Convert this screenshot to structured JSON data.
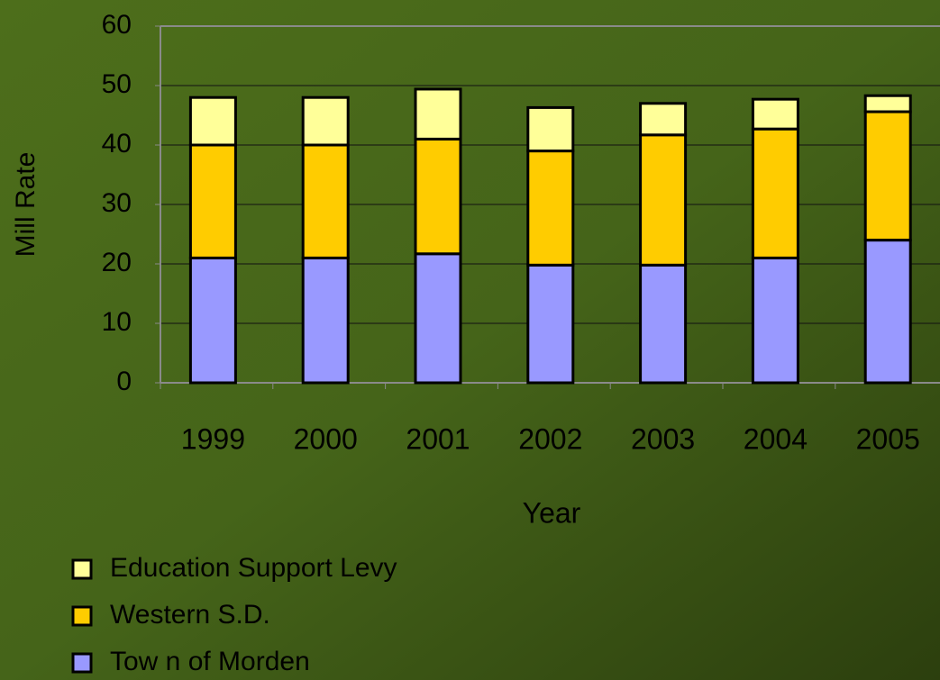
{
  "chart_data": {
    "type": "stacked_bar",
    "xlabel": "Year",
    "ylabel": "Mill Rate",
    "categories": [
      "1999",
      "2000",
      "2001",
      "2002",
      "2003",
      "2004",
      "2005"
    ],
    "series": [
      {
        "name": "Tow n of Morden",
        "color": "#9999ff",
        "values": [
          21,
          21,
          21.7,
          19.8,
          19.8,
          21,
          24
        ]
      },
      {
        "name": "Western S.D.",
        "color": "#ffcc00",
        "values": [
          19,
          19,
          19.3,
          19.2,
          21.9,
          21.7,
          21.6
        ]
      },
      {
        "name": "Education Support Levy",
        "color": "#ffff99",
        "values": [
          8,
          8,
          8.4,
          7.3,
          5.3,
          5,
          2.7
        ]
      }
    ],
    "ylim": [
      0,
      60
    ],
    "yticks": [
      0,
      10,
      20,
      30,
      40,
      50,
      60
    ],
    "grid": true,
    "legend": "bottom-left"
  }
}
